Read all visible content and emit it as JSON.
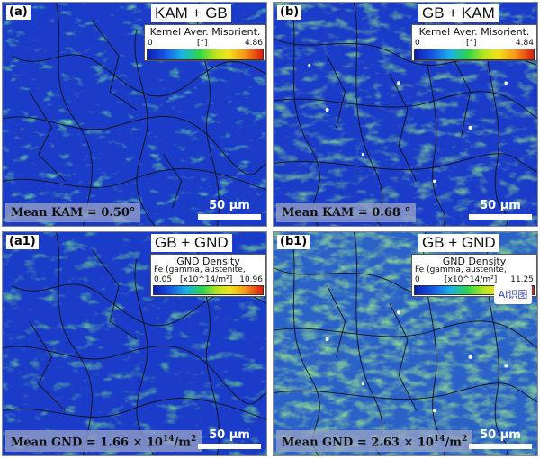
{
  "panels": [
    {
      "letter": "(a)",
      "title": "KAM + GB",
      "legend": {
        "title": "Kernel Aver. Misorient.",
        "sub": "",
        "min": "0",
        "unit": "[°]",
        "max": "4.86"
      },
      "stat": "Mean KAM = 0.50°",
      "scale": "50 µm"
    },
    {
      "letter": "(b)",
      "title": "GB + KAM",
      "legend": {
        "title": "Kernel Aver. Misorient.",
        "sub": "",
        "min": "0",
        "unit": "[°]",
        "max": "4.84"
      },
      "stat": "Mean KAM = 0.68 °",
      "scale": "50 µm"
    },
    {
      "letter": "(a1)",
      "title": "GB + GND",
      "legend": {
        "title": "GND Density",
        "sub": "Fe (gamma, austenite,",
        "min": "0.05",
        "unit": "[x10^14/m²]",
        "max": "10.96"
      },
      "stat_prefix": "Mean GND = 1.66 × 10",
      "stat_exp": "14",
      "stat_suffix": "/m",
      "stat_exp2": "2",
      "scale": "50 µm"
    },
    {
      "letter": "(b1)",
      "title": "GB + GND",
      "legend": {
        "title": "GND Density",
        "sub": "Fe (gamma, austenite,",
        "min": "0",
        "unit": "[x10^14/m²]",
        "max": "11.25"
      },
      "stat_prefix": "Mean GND = 2.63 × 10",
      "stat_exp": "14",
      "stat_suffix": "/m",
      "stat_exp2": "2",
      "scale": "50 µm",
      "watermark": "AI识图"
    }
  ],
  "colors": {
    "map_blue": "#1a3cc8",
    "map_green": "#3fcf3a",
    "boundary": "#111111"
  }
}
